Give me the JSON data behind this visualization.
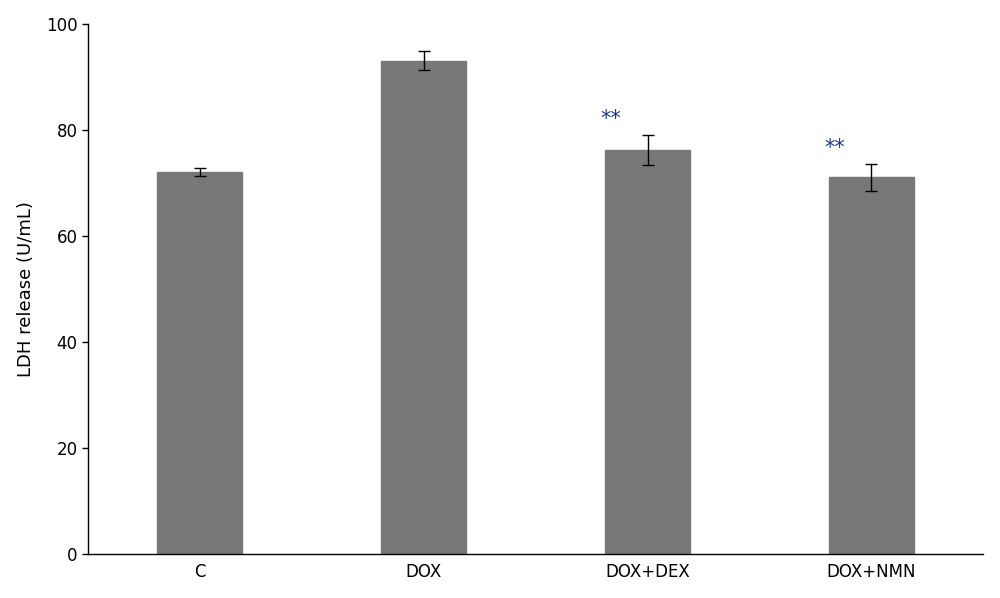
{
  "categories": [
    "C",
    "DOX",
    "DOX+DEX",
    "DOX+NMN"
  ],
  "values": [
    72.0,
    93.0,
    76.2,
    71.0
  ],
  "errors": [
    0.8,
    1.8,
    2.8,
    2.5
  ],
  "bar_color": "#787878",
  "bar_width": 0.38,
  "ylabel": "LDH release (U/mL)",
  "ylim": [
    0,
    100
  ],
  "yticks": [
    0,
    20,
    40,
    60,
    80,
    100
  ],
  "significance": [
    false,
    false,
    true,
    true
  ],
  "sig_label": "**",
  "sig_color": "#1a3a8a",
  "sig_fontsize": 15,
  "ylabel_fontsize": 13,
  "tick_fontsize": 12,
  "background_color": "#ffffff",
  "figsize": [
    10.0,
    5.98
  ],
  "dpi": 100,
  "xlim": [
    -0.5,
    3.5
  ]
}
